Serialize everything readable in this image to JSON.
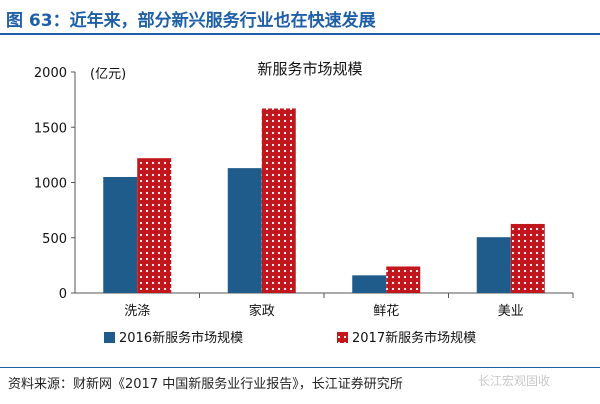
{
  "figure_title": "图 63：近年来，部分新兴服务行业也在快速发展",
  "source_text": "资料来源：财新网《2017 中国新服务业行业报告》，长江证券研究所",
  "watermark": "长江宏观固收",
  "colors": {
    "series_2016": "#1f5c8c",
    "series_2017": "#c0161c",
    "dot": "#ffffff",
    "title": "#1f5fa8"
  },
  "chart_data": {
    "type": "bar",
    "title": "新服务市场规模",
    "unit_label": "(亿元)",
    "categories": [
      "洗涤",
      "家政",
      "鲜花",
      "美业"
    ],
    "series": [
      {
        "name": "2016新服务市场规模",
        "values": [
          1050,
          1130,
          160,
          505
        ]
      },
      {
        "name": "2017新服务市场规模",
        "values": [
          1220,
          1670,
          240,
          625
        ]
      }
    ],
    "ylim": [
      0,
      2000
    ],
    "yticks": [
      "0",
      "500",
      "1000",
      "1500",
      "2000"
    ],
    "legend_position": "bottom",
    "grid": false
  }
}
